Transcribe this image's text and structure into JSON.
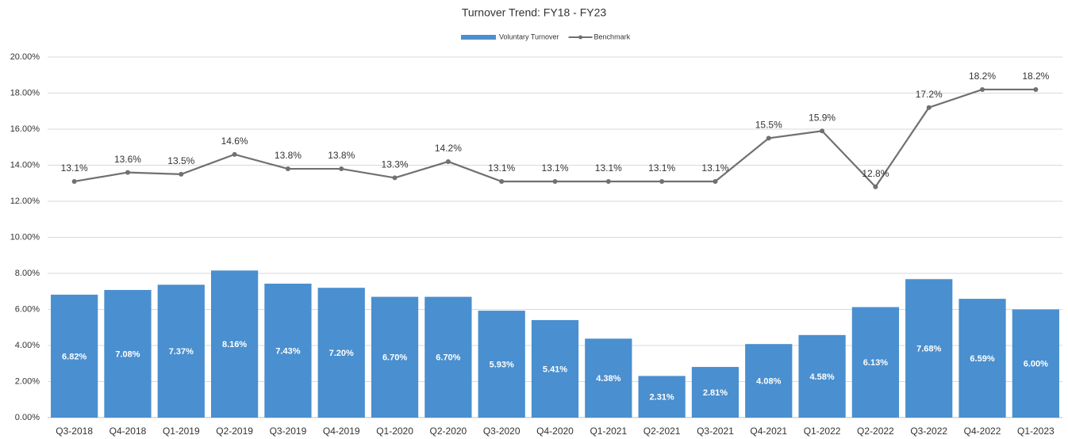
{
  "chart_data": {
    "type": "combo",
    "title": "Turnover Trend: FY18 - FY23",
    "categories": [
      "Q3-2018",
      "Q4-2018",
      "Q1-2019",
      "Q2-2019",
      "Q3-2019",
      "Q4-2019",
      "Q1-2020",
      "Q2-2020",
      "Q3-2020",
      "Q4-2020",
      "Q1-2021",
      "Q2-2021",
      "Q3-2021",
      "Q4-2021",
      "Q1-2022",
      "Q2-2022",
      "Q3-2022",
      "Q4-2022",
      "Q1-2023"
    ],
    "series": [
      {
        "name": "Voluntary Turnover",
        "type": "bar",
        "color": "#4a8fcf",
        "values": [
          6.82,
          7.08,
          7.37,
          8.16,
          7.43,
          7.2,
          6.7,
          6.7,
          5.93,
          5.41,
          4.38,
          2.31,
          2.81,
          4.08,
          4.58,
          6.13,
          7.68,
          6.59,
          6.0
        ],
        "value_labels": [
          "6.82%",
          "7.08%",
          "7.37%",
          "8.16%",
          "7.43%",
          "7.20%",
          "6.70%",
          "6.70%",
          "5.93%",
          "5.41%",
          "4.38%",
          "2.31%",
          "2.81%",
          "4.08%",
          "4.58%",
          "6.13%",
          "7.68%",
          "6.59%",
          "6.00%"
        ]
      },
      {
        "name": "Benchmark",
        "type": "line",
        "color": "#707070",
        "values": [
          13.1,
          13.6,
          13.5,
          14.6,
          13.8,
          13.8,
          13.3,
          14.2,
          13.1,
          13.1,
          13.1,
          13.1,
          13.1,
          15.5,
          15.9,
          12.8,
          17.2,
          18.2,
          18.2
        ],
        "value_labels": [
          "13.1%",
          "13.6%",
          "13.5%",
          "14.6%",
          "13.8%",
          "13.8%",
          "13.3%",
          "14.2%",
          "13.1%",
          "13.1%",
          "13.1%",
          "13.1%",
          "13.1%",
          "15.5%",
          "15.9%",
          "12.8%",
          "17.2%",
          "18.2%",
          "18.2%"
        ]
      }
    ],
    "ylim": [
      0,
      20
    ],
    "yticks": [
      {
        "value": 0,
        "label": "0.00%"
      },
      {
        "value": 2,
        "label": "2.00%"
      },
      {
        "value": 4,
        "label": "4.00%"
      },
      {
        "value": 6,
        "label": "6.00%"
      },
      {
        "value": 8,
        "label": "8.00%"
      },
      {
        "value": 10,
        "label": "10.00%"
      },
      {
        "value": 12,
        "label": "12.00%"
      },
      {
        "value": 14,
        "label": "14.00%"
      },
      {
        "value": 16,
        "label": "16.00%"
      },
      {
        "value": 18,
        "label": "18.00%"
      },
      {
        "value": 20,
        "label": "20.00%"
      }
    ],
    "grid": true,
    "legend": "top"
  }
}
